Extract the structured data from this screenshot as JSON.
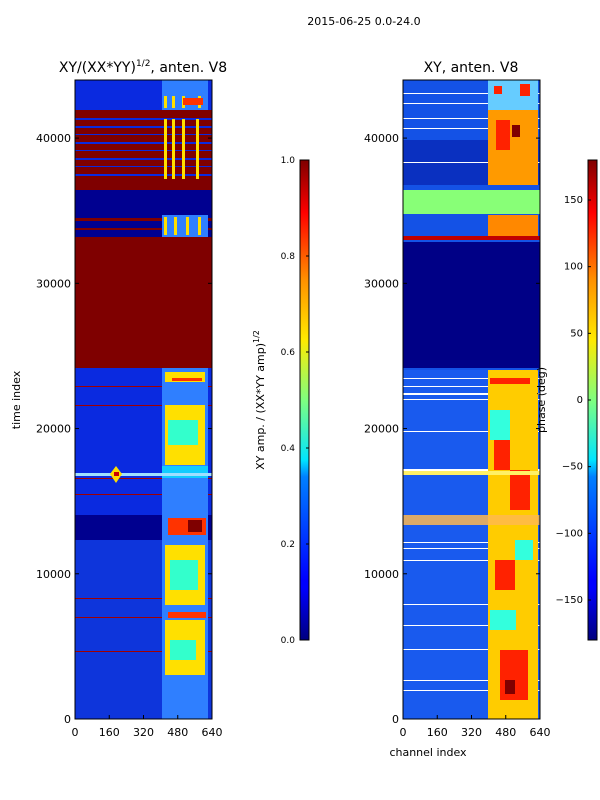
{
  "figure": {
    "suptitle": "2015-06-25 0.0-24.0"
  },
  "chart_data": [
    {
      "type": "heatmap",
      "title_prefix": "XY/(XX*YY)",
      "title_exponent": "1/2",
      "title_suffix": ", anten. V8",
      "xlabel": "",
      "ylabel": "time index",
      "xlim": [
        0,
        640
      ],
      "ylim": [
        0,
        44000
      ],
      "xticks": [
        0,
        160,
        320,
        480,
        640
      ],
      "yticks": [
        0,
        10000,
        20000,
        30000,
        40000
      ],
      "colorbar": {
        "label": "XY amp. / (XX*YY amp)",
        "label_exponent": "1/2",
        "range": [
          0.0,
          1.0
        ],
        "ticks": [
          "0.0",
          "0.2",
          "0.4",
          "0.6",
          "0.8",
          "1.0"
        ],
        "colormap": "jet"
      },
      "features": [
        {
          "kind": "saturated band (value ~1.0)",
          "y_range": [
            24000,
            33000
          ]
        },
        {
          "kind": "saturated band (value ~1.0)",
          "y_range": [
            36500,
            41800
          ]
        },
        {
          "kind": "low-value block (value ~0.05)",
          "y_range": [
            33000,
            36500
          ]
        },
        {
          "kind": "high-variance channels",
          "x_range": [
            400,
            600
          ]
        }
      ]
    },
    {
      "type": "heatmap",
      "title": "XY, anten. V8",
      "xlabel": "channel index",
      "ylabel": "",
      "xlim": [
        0,
        640
      ],
      "ylim": [
        0,
        44000
      ],
      "xticks": [
        0,
        160,
        320,
        480,
        640
      ],
      "yticks": [
        0,
        10000,
        20000,
        30000,
        40000
      ],
      "colorbar": {
        "label": "phase (deg)",
        "range": [
          -180,
          180
        ],
        "ticks": [
          "−150",
          "−100",
          "−50",
          "0",
          "50",
          "100",
          "150"
        ],
        "colormap": "jet"
      },
      "features": [
        {
          "kind": "constant phase band (~ -10 deg)",
          "y_range": [
            34800,
            36300
          ]
        },
        {
          "kind": "constant phase band (~ -170 deg)",
          "y_range": [
            24000,
            32800
          ]
        },
        {
          "kind": "high-variance channels",
          "x_range": [
            370,
            600
          ]
        }
      ]
    }
  ]
}
